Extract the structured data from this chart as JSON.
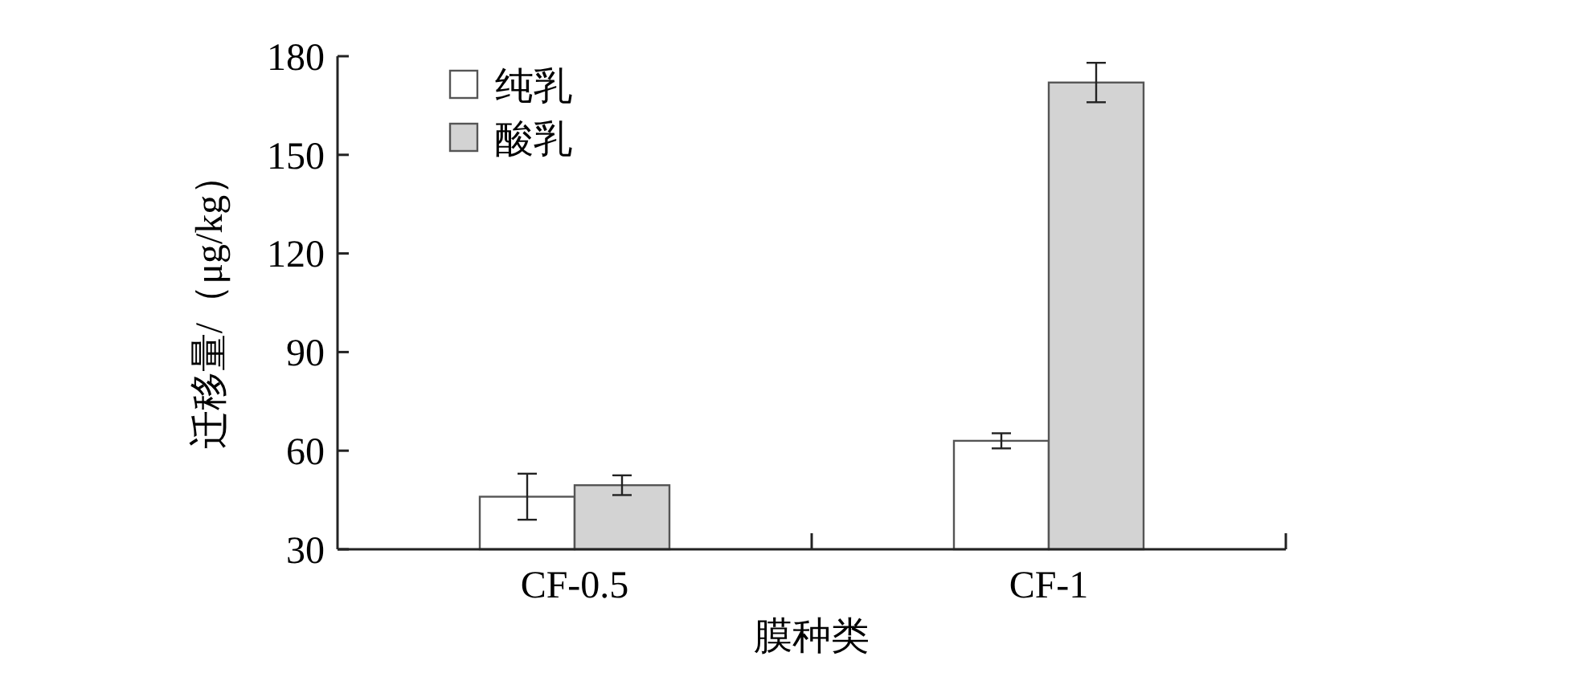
{
  "chart_data": {
    "type": "bar",
    "xlabel": "膜种类",
    "ylabel": "迁移量/（μg/kg）",
    "categories": [
      "CF-0.5",
      "CF-1"
    ],
    "series": [
      {
        "name": "纯乳",
        "color": "#ffffff",
        "values": [
          46,
          63
        ],
        "errors": [
          7,
          2.3
        ]
      },
      {
        "name": "酸乳",
        "color": "#d3d3d3",
        "values": [
          49.5,
          172
        ],
        "errors": [
          3,
          6
        ]
      }
    ],
    "ylim": [
      30,
      180
    ],
    "yticks": [
      30,
      60,
      90,
      120,
      150,
      180
    ],
    "grid": false,
    "legend": "top left"
  }
}
